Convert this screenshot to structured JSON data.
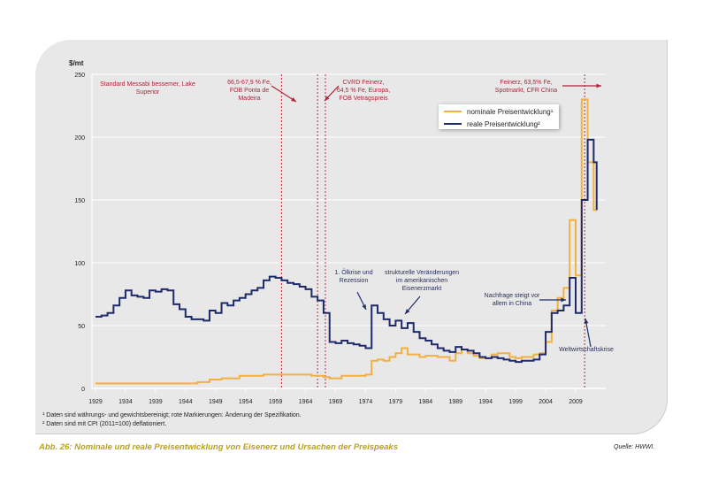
{
  "chart_data": {
    "type": "line",
    "ylabel": "$/mt",
    "ylim": [
      0,
      250
    ],
    "yticks": [
      0,
      50,
      100,
      150,
      200,
      250
    ],
    "xlim": [
      1929,
      2012.5
    ],
    "xticks": [
      1929,
      1934,
      1939,
      1944,
      1949,
      1954,
      1959,
      1964,
      1969,
      1974,
      1979,
      1984,
      1989,
      1994,
      1999,
      2004,
      2009
    ],
    "grid": "horizontal",
    "legend_position": "top-right",
    "series": [
      {
        "name": "nominale Preisentwicklung¹",
        "color": "#f2b040",
        "x": [
          1929,
          1944,
          1946,
          1948,
          1950,
          1953,
          1957,
          1960,
          1965,
          1967,
          1968,
          1970,
          1974,
          1975,
          1976,
          1977,
          1978,
          1979,
          1980,
          1981,
          1982,
          1983,
          1984,
          1986,
          1988,
          1989,
          1990,
          1991,
          1992,
          1993,
          1994,
          1995,
          1996,
          1997,
          1998,
          1999,
          2000,
          2001,
          2002,
          2003,
          2004,
          2005,
          2006,
          2007,
          2008,
          2009,
          2010,
          2011,
          2012,
          2012.5
        ],
        "y": [
          4,
          4,
          5,
          7,
          8,
          10,
          11,
          11,
          10,
          9,
          8,
          10,
          11,
          22,
          23,
          22,
          25,
          28,
          32,
          27,
          27,
          25,
          26,
          25,
          22,
          28,
          31,
          28,
          26,
          24,
          24,
          27,
          28,
          28,
          25,
          24,
          25,
          25,
          27,
          28,
          37,
          62,
          72,
          80,
          134,
          90,
          230,
          180,
          142,
          142
        ]
      },
      {
        "name": "reale Preisentwicklung²",
        "color": "#1f2a6b",
        "x": [
          1929,
          1930,
          1931,
          1932,
          1933,
          1934,
          1935,
          1936,
          1937,
          1938,
          1939,
          1940,
          1941,
          1942,
          1943,
          1944,
          1945,
          1946,
          1947,
          1948,
          1949,
          1950,
          1951,
          1952,
          1953,
          1954,
          1955,
          1956,
          1957,
          1958,
          1959,
          1960,
          1961,
          1962,
          1963,
          1964,
          1965,
          1966,
          1967,
          1968,
          1969,
          1970,
          1971,
          1972,
          1973,
          1974,
          1975,
          1976,
          1977,
          1978,
          1979,
          1980,
          1981,
          1982,
          1983,
          1984,
          1985,
          1986,
          1987,
          1988,
          1989,
          1990,
          1991,
          1992,
          1993,
          1994,
          1995,
          1996,
          1997,
          1998,
          1999,
          2000,
          2001,
          2002,
          2003,
          2004,
          2005,
          2006,
          2007,
          2008,
          2009,
          2010,
          2011,
          2012,
          2012.5
        ],
        "y": [
          57,
          58,
          60,
          66,
          72,
          78,
          74,
          73,
          72,
          78,
          77,
          79,
          78,
          67,
          63,
          57,
          55,
          55,
          54,
          62,
          60,
          68,
          66,
          70,
          72,
          75,
          78,
          80,
          86,
          89,
          88,
          86,
          84,
          83,
          81,
          79,
          73,
          70,
          60,
          37,
          36,
          38,
          36,
          35,
          34,
          32,
          66,
          60,
          55,
          50,
          54,
          48,
          52,
          45,
          40,
          38,
          35,
          32,
          30,
          29,
          33,
          31,
          30,
          28,
          25,
          24,
          25,
          24,
          23,
          22,
          21,
          22,
          22,
          23,
          27,
          45,
          60,
          62,
          66,
          88,
          60,
          150,
          198,
          180,
          142
        ]
      }
    ],
    "spec_change_years": [
      1960,
      1966,
      1967.3,
      2010.5
    ],
    "annotations": {
      "a1": "Standard Messabi bessemer, Lake Superior",
      "a2": "66,5-67,9 % Fe, FOB Ponta de Madeira",
      "a3": "CVRD Feinerz, 64,5 % Fe, Europa, FOB Vetragspreis",
      "a4": "Feinerz, 63,5% Fe, Spotmarkt, CFR China",
      "b1": "1. Ölkrise und Rezession",
      "b2": "strukturelle Veränderungen im amerikanischen Eisenerzmarkt",
      "b3": "Nachfrage steigt vor allem in China",
      "b4": "Weltwirtschaftskrise"
    }
  },
  "footnotes": [
    "¹  Daten sind währungs- und gewichtsbereinigt; rote Markierungen: Änderung der Spezifikation.",
    "²  Daten sind mit CPI (2011=100) deflationiert."
  ],
  "caption": "Abb. 26: Nominale und reale Preisentwicklung von Eisenerz und Ursachen der Preispeaks",
  "source": "Quelle: HWWI."
}
